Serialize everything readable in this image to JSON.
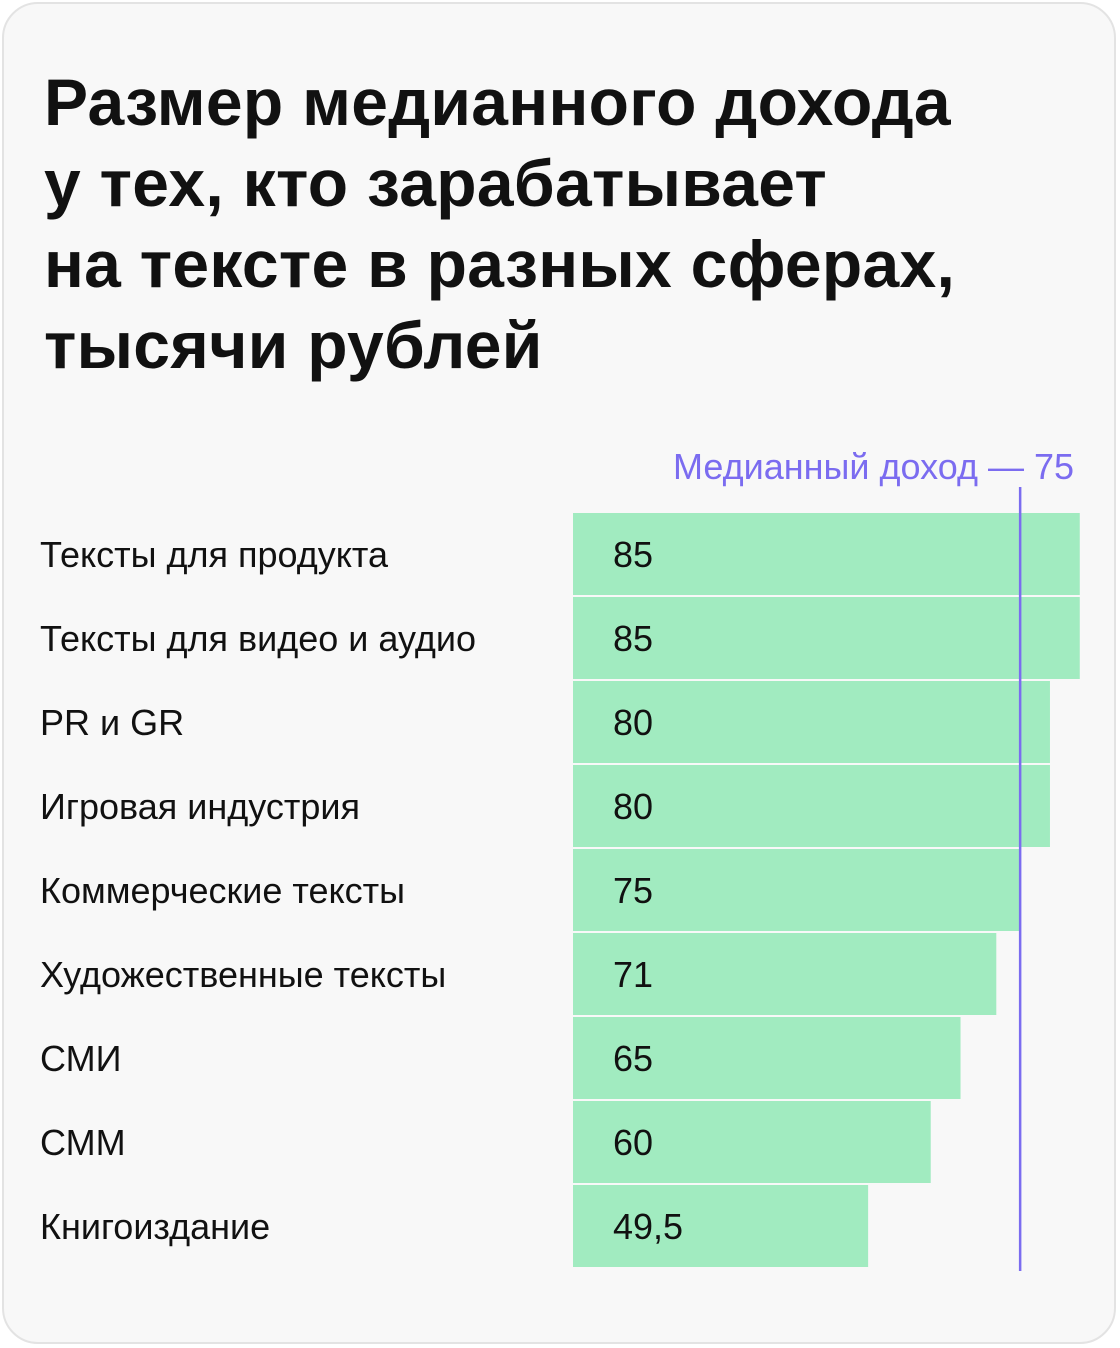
{
  "chart_data": {
    "type": "bar",
    "orientation": "horizontal",
    "title_lines": [
      "Размер медианного дохода",
      "у тех, кто зарабатывает",
      "на тексте в разных сферах,",
      "тысячи рублей"
    ],
    "categories": [
      "Тексты для продукта",
      "Тексты для видео и аудио",
      "PR и GR",
      "Игровая индустрия",
      "Коммерческие тексты",
      "Художественные тексты",
      "СМИ",
      "СММ",
      "Книгоиздание"
    ],
    "values": [
      85,
      85,
      80,
      80,
      75,
      71,
      65,
      60,
      49.5
    ],
    "value_labels": [
      "85",
      "85",
      "80",
      "80",
      "75",
      "71",
      "65",
      "60",
      "49,5"
    ],
    "reference_line": {
      "value": 75,
      "label": "Медианный доход — 75"
    },
    "colors": {
      "bar": "#a1ebc0",
      "reference": "#7b6cf0",
      "text": "#111111",
      "background": "#f8f8f8"
    },
    "grid": false,
    "legend": "none"
  }
}
